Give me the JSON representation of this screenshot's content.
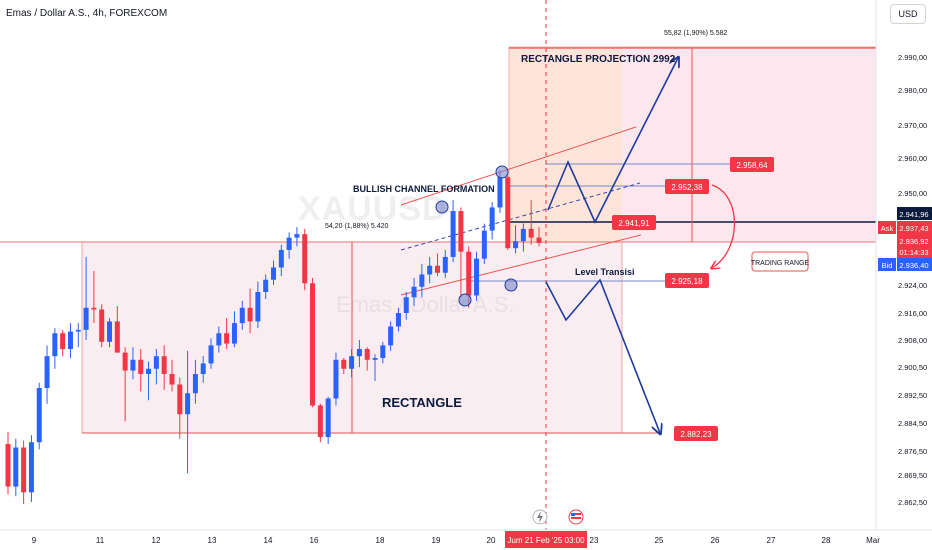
{
  "header": {
    "title": "Emas / Dollar A.S., 4h, FOREXCOM",
    "currency": "USD"
  },
  "watermark": {
    "symbol": "XAUUSD",
    "name": "Emas / Dollar A.S."
  },
  "chart_data": {
    "type": "candlestick",
    "y_ticks": [
      "2.990,00",
      "2.980,00",
      "2.970,00",
      "2.960,00",
      "2.950,00",
      "2.924,00",
      "2.916,00",
      "2.908,00",
      "2.900,50",
      "2.892,50",
      "2.884,50",
      "2.876,50",
      "2.869,50",
      "2.862,50"
    ],
    "x_ticks": [
      "9",
      "11",
      "12",
      "13",
      "14",
      "16",
      "18",
      "19",
      "20",
      "23",
      "25",
      "26",
      "27",
      "28",
      "Mar"
    ],
    "x_cursor": "Jum 21 Feb '25   03:00",
    "price_labels": {
      "last": "2.941,96",
      "ask_tag": "Ask",
      "ask": "2.937,43",
      "ask_mid": "2.936,92",
      "countdown": "01:14:33",
      "bid_tag": "Bid",
      "bid": "2.936,40"
    },
    "candles": [
      {
        "o": 2878.5,
        "h": 2882.0,
        "l": 2864.5,
        "c": 2866.5
      },
      {
        "o": 2866.5,
        "h": 2880.0,
        "l": 2864.0,
        "c": 2877.5
      },
      {
        "o": 2877.5,
        "h": 2879.5,
        "l": 2862.0,
        "c": 2865.0
      },
      {
        "o": 2865.0,
        "h": 2881.0,
        "l": 2862.5,
        "c": 2879.0
      },
      {
        "o": 2879.0,
        "h": 2896.0,
        "l": 2877.0,
        "c": 2894.5
      },
      {
        "o": 2894.5,
        "h": 2906.5,
        "l": 2890.0,
        "c": 2903.5
      },
      {
        "o": 2903.5,
        "h": 2911.5,
        "l": 2900.0,
        "c": 2910.0
      },
      {
        "o": 2910.0,
        "h": 2911.0,
        "l": 2903.5,
        "c": 2905.5
      },
      {
        "o": 2905.5,
        "h": 2913.0,
        "l": 2903.0,
        "c": 2910.5
      },
      {
        "o": 2910.5,
        "h": 2913.0,
        "l": 2906.0,
        "c": 2911.0
      },
      {
        "o": 2911.0,
        "h": 2932.0,
        "l": 2908.0,
        "c": 2917.5
      },
      {
        "o": 2917.5,
        "h": 2928.0,
        "l": 2913.0,
        "c": 2917.0
      },
      {
        "o": 2917.0,
        "h": 2918.5,
        "l": 2906.0,
        "c": 2907.5
      },
      {
        "o": 2907.5,
        "h": 2914.5,
        "l": 2906.0,
        "c": 2913.5
      },
      {
        "o": 2913.5,
        "h": 2918.0,
        "l": 2904.5,
        "c": 2904.5
      },
      {
        "o": 2904.5,
        "h": 2906.0,
        "l": 2885.0,
        "c": 2899.5
      },
      {
        "o": 2899.5,
        "h": 2906.0,
        "l": 2897.0,
        "c": 2902.5
      },
      {
        "o": 2902.5,
        "h": 2905.5,
        "l": 2893.5,
        "c": 2898.5
      },
      {
        "o": 2898.5,
        "h": 2902.0,
        "l": 2891.0,
        "c": 2900.0
      },
      {
        "o": 2900.0,
        "h": 2905.5,
        "l": 2895.5,
        "c": 2903.5
      },
      {
        "o": 2903.5,
        "h": 2906.5,
        "l": 2894.0,
        "c": 2898.5
      },
      {
        "o": 2898.5,
        "h": 2902.5,
        "l": 2893.5,
        "c": 2895.5
      },
      {
        "o": 2895.5,
        "h": 2897.5,
        "l": 2880.0,
        "c": 2887.0
      },
      {
        "o": 2887.0,
        "h": 2905.0,
        "l": 2870.0,
        "c": 2893.0
      },
      {
        "o": 2893.0,
        "h": 2902.5,
        "l": 2890.0,
        "c": 2898.5
      },
      {
        "o": 2898.5,
        "h": 2903.5,
        "l": 2896.0,
        "c": 2901.5
      },
      {
        "o": 2901.5,
        "h": 2908.5,
        "l": 2900.0,
        "c": 2906.5
      },
      {
        "o": 2906.5,
        "h": 2912.0,
        "l": 2904.5,
        "c": 2910.0
      },
      {
        "o": 2910.0,
        "h": 2914.5,
        "l": 2905.5,
        "c": 2907.0
      },
      {
        "o": 2907.0,
        "h": 2916.5,
        "l": 2906.0,
        "c": 2913.0
      },
      {
        "o": 2913.0,
        "h": 2919.5,
        "l": 2911.0,
        "c": 2917.5
      },
      {
        "o": 2917.5,
        "h": 2923.0,
        "l": 2910.0,
        "c": 2913.5
      },
      {
        "o": 2913.5,
        "h": 2925.0,
        "l": 2911.5,
        "c": 2922.0
      },
      {
        "o": 2922.0,
        "h": 2927.0,
        "l": 2920.0,
        "c": 2925.5
      },
      {
        "o": 2925.5,
        "h": 2931.0,
        "l": 2924.0,
        "c": 2929.0
      },
      {
        "o": 2929.0,
        "h": 2935.5,
        "l": 2926.5,
        "c": 2934.0
      },
      {
        "o": 2934.0,
        "h": 2939.0,
        "l": 2931.5,
        "c": 2937.5
      },
      {
        "o": 2937.5,
        "h": 2940.5,
        "l": 2935.0,
        "c": 2938.5
      },
      {
        "o": 2938.5,
        "h": 2940.0,
        "l": 2922.5,
        "c": 2924.5
      },
      {
        "o": 2924.5,
        "h": 2926.0,
        "l": 2889.0,
        "c": 2889.5
      },
      {
        "o": 2889.5,
        "h": 2890.0,
        "l": 2879.0,
        "c": 2880.5
      },
      {
        "o": 2880.5,
        "h": 2892.0,
        "l": 2878.5,
        "c": 2891.5
      },
      {
        "o": 2891.5,
        "h": 2904.5,
        "l": 2889.5,
        "c": 2902.5
      },
      {
        "o": 2902.5,
        "h": 2903.0,
        "l": 2898.5,
        "c": 2900.0
      },
      {
        "o": 2900.0,
        "h": 2905.5,
        "l": 2897.5,
        "c": 2903.5
      },
      {
        "o": 2903.5,
        "h": 2908.0,
        "l": 2900.5,
        "c": 2905.5
      },
      {
        "o": 2905.5,
        "h": 2906.0,
        "l": 2899.5,
        "c": 2902.5
      },
      {
        "o": 2902.5,
        "h": 2904.0,
        "l": 2896.5,
        "c": 2903.0
      },
      {
        "o": 2903.0,
        "h": 2907.5,
        "l": 2901.5,
        "c": 2906.5
      },
      {
        "o": 2906.5,
        "h": 2913.5,
        "l": 2905.0,
        "c": 2912.0
      },
      {
        "o": 2912.0,
        "h": 2917.5,
        "l": 2910.5,
        "c": 2916.0
      },
      {
        "o": 2916.0,
        "h": 2922.0,
        "l": 2914.0,
        "c": 2920.5
      },
      {
        "o": 2920.5,
        "h": 2926.0,
        "l": 2918.0,
        "c": 2923.5
      },
      {
        "o": 2923.5,
        "h": 2930.0,
        "l": 2920.5,
        "c": 2927.0
      },
      {
        "o": 2927.0,
        "h": 2932.0,
        "l": 2924.5,
        "c": 2929.5
      },
      {
        "o": 2929.5,
        "h": 2933.0,
        "l": 2926.5,
        "c": 2927.5
      },
      {
        "o": 2927.5,
        "h": 2934.0,
        "l": 2926.0,
        "c": 2932.0
      },
      {
        "o": 2932.0,
        "h": 2948.0,
        "l": 2930.5,
        "c": 2945.0
      },
      {
        "o": 2945.0,
        "h": 2946.0,
        "l": 2920.5,
        "c": 2933.5
      },
      {
        "o": 2933.5,
        "h": 2935.0,
        "l": 2917.5,
        "c": 2921.0
      },
      {
        "o": 2921.0,
        "h": 2933.5,
        "l": 2919.5,
        "c": 2931.5
      },
      {
        "o": 2931.5,
        "h": 2941.5,
        "l": 2930.0,
        "c": 2939.5
      },
      {
        "o": 2939.5,
        "h": 2947.5,
        "l": 2937.0,
        "c": 2946.0
      },
      {
        "o": 2946.0,
        "h": 2956.5,
        "l": 2944.5,
        "c": 2954.5
      },
      {
        "o": 2954.5,
        "h": 2955.0,
        "l": 2934.0,
        "c": 2934.5
      },
      {
        "o": 2934.5,
        "h": 2941.0,
        "l": 2933.0,
        "c": 2936.5
      },
      {
        "o": 2936.5,
        "h": 2941.5,
        "l": 2933.5,
        "c": 2940.0
      },
      {
        "o": 2940.0,
        "h": 2948.0,
        "l": 2935.5,
        "c": 2937.5
      },
      {
        "o": 2937.5,
        "h": 2940.5,
        "l": 2935.0,
        "c": 2936.0
      }
    ],
    "levels": {
      "rect_top": 2941.0,
      "rect_bottom": 2882.23,
      "projection_top": 2992.0,
      "current": 2941.96
    },
    "annotations": {
      "rectangle_projection": "RECTANGLE PROJECTION 2992",
      "bullish_channel": "BULLISH CHANNEL FORMATION",
      "rectangle": "RECTANGLE",
      "level_transisi": "Level Transisi",
      "trading_range": "TRADING RANGE",
      "measure_left": "54,20 (1,88%) 5.420",
      "measure_right": "55,82 (1,90%) 5.582",
      "target_2958": "2.958,64",
      "target_2952": "2.952,38",
      "target_2941": "2.941,91",
      "target_2925": "2.925,18",
      "target_2882": "2.882,23"
    },
    "colors": {
      "up": "#2962ff",
      "down": "#f23645",
      "zone": "#c2185b",
      "arrow": "#1e3a9e"
    }
  }
}
